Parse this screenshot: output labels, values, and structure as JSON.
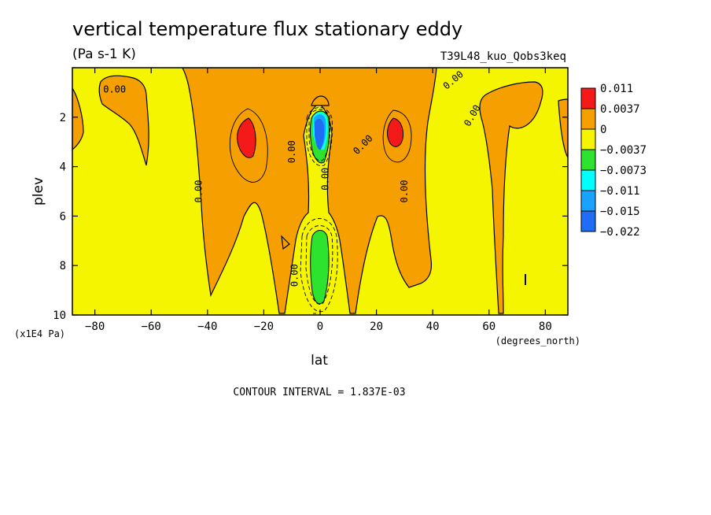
{
  "header": {
    "title": "vertical temperature flux stationary eddy",
    "units": "(Pa s-1 K)",
    "run_id": "T39L48_kuo_Qobs3keq"
  },
  "footer": {
    "contour_interval": "CONTOUR INTERVAL = 1.837E-03"
  },
  "chart_data": {
    "type": "heatmap",
    "title": "vertical temperature flux stationary eddy",
    "subtitle": "(Pa s-1 K)",
    "xlabel": "lat",
    "ylabel": "plev",
    "x_units_label": "(degrees_north)",
    "y_units_label": "(x1E4 Pa)",
    "xlim": [
      -88,
      88
    ],
    "ylim": [
      10,
      0
    ],
    "x_ticks": [
      -80,
      -60,
      -40,
      -20,
      0,
      20,
      40,
      60,
      80
    ],
    "x_tick_labels": [
      "−80",
      "−60",
      "−40",
      "−20",
      "0",
      "20",
      "40",
      "60",
      "80"
    ],
    "y_ticks": [
      2,
      4,
      6,
      8,
      10
    ],
    "y_tick_labels": [
      "2",
      "4",
      "6",
      "8",
      "10"
    ],
    "legend_position": "right",
    "legend": [
      {
        "label": "0.011",
        "color": "#f51a1a"
      },
      {
        "label": "0.0037",
        "color": "#f5a000"
      },
      {
        "label": "0",
        "color": "#f5f500"
      },
      {
        "label": "−0.0037",
        "color": "#2ee32e"
      },
      {
        "label": "−0.0073",
        "color": "#00ffff"
      },
      {
        "label": "−0.011",
        "color": "#19a3ff"
      },
      {
        "label": "−0.015",
        "color": "#1f6cf5"
      },
      {
        "label": "−0.022",
        "color": "#1f6cf5"
      }
    ],
    "contour_labels": [
      {
        "text": "0.00",
        "lat": -73,
        "plev": 1.0,
        "angle": 0
      },
      {
        "text": "0.00",
        "lat": -42,
        "plev": 5.0,
        "angle": -90
      },
      {
        "text": "0.00",
        "lat": -9,
        "plev": 3.4,
        "angle": -90
      },
      {
        "text": "0.00",
        "lat": 3,
        "plev": 4.5,
        "angle": -90
      },
      {
        "text": "0.00",
        "lat": -8,
        "plev": 8.4,
        "angle": -90
      },
      {
        "text": "0.00",
        "lat": 16,
        "plev": 3.2,
        "angle": -45
      },
      {
        "text": "0.00",
        "lat": 31,
        "plev": 5.0,
        "angle": -90
      },
      {
        "text": "0.00",
        "lat": 48,
        "plev": 0.6,
        "angle": -40
      },
      {
        "text": "0.00",
        "lat": 55,
        "plev": 2.0,
        "angle": -60
      }
    ],
    "regions": [
      {
        "level": "0.0037",
        "color": "#f5a000",
        "shape": "upper-arc",
        "lat_range": [
          -48,
          42
        ],
        "plev_range": [
          0,
          10
        ]
      },
      {
        "level": "0.0037",
        "color": "#f5a000",
        "shape": "lobe",
        "lat_range": [
          -76,
          -55
        ],
        "plev_range": [
          0.2,
          4.0
        ]
      },
      {
        "level": "0.0037",
        "color": "#f5a000",
        "shape": "lobe",
        "lat_range": [
          -88,
          -84
        ],
        "plev_range": [
          0.8,
          3.4
        ]
      },
      {
        "level": "0.0037",
        "color": "#f5a000",
        "shape": "lobe",
        "lat_range": [
          55,
          80
        ],
        "plev_range": [
          0.6,
          9.8
        ]
      },
      {
        "level": "0.011",
        "color": "#f51a1a",
        "shape": "core",
        "lat": -25,
        "plev": 2.8
      },
      {
        "level": "0.011",
        "color": "#f51a1a",
        "shape": "core",
        "lat": 27,
        "plev": 2.7
      },
      {
        "level": "−0.0037",
        "color": "#2ee32e",
        "shape": "core",
        "lat": 0,
        "plev": 8.2
      },
      {
        "level": "−0.022",
        "color": "#1f6cf5",
        "shape": "core",
        "lat": 0,
        "plev": 2.9
      }
    ]
  }
}
